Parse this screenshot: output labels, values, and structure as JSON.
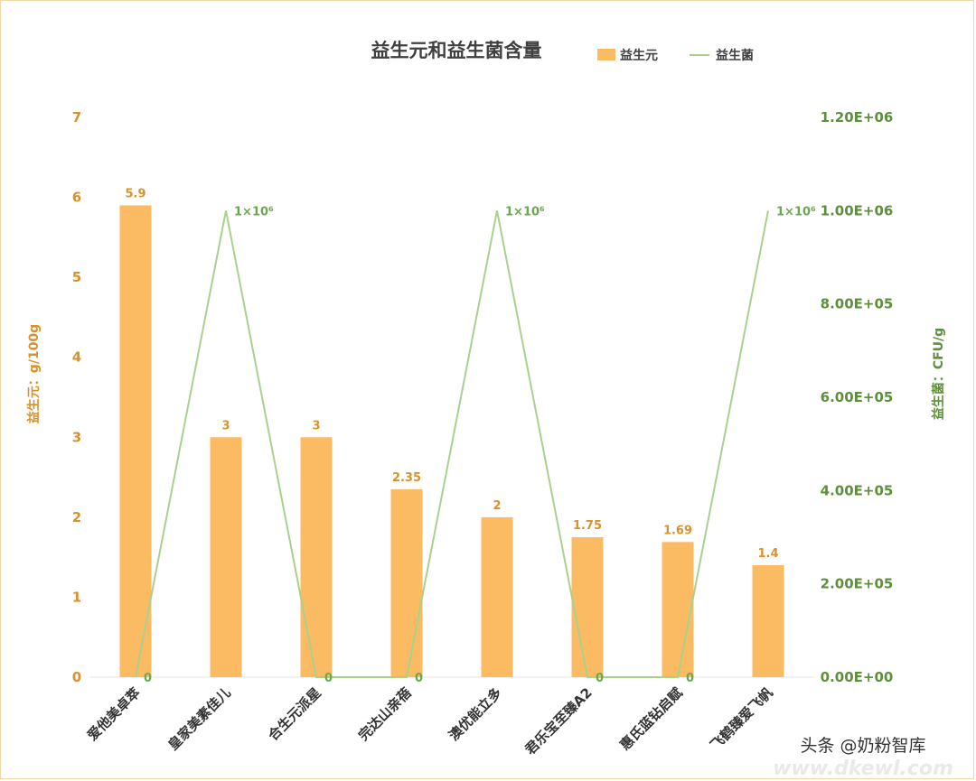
{
  "colors": {
    "bar": "#fbbb62",
    "line": "#a9d18e",
    "left_axis": "#d9922b",
    "right_axis": "#5e8f3c",
    "title": "#404040"
  },
  "chart_data": {
    "type": "bar",
    "title": "益生元和益生菌含量",
    "categories": [
      "爱他美卓萃",
      "皇家美素佳儿",
      "合生元派星",
      "完达山亲蓓",
      "澳优能立多",
      "君乐宝至臻A2",
      "惠氏蓝钻启赋",
      "飞鹤臻爱飞帆"
    ],
    "series": [
      {
        "name": "益生元",
        "type": "bar",
        "axis": "left",
        "values": [
          5.9,
          3,
          3,
          2.35,
          2,
          1.75,
          1.69,
          1.4
        ],
        "labels": [
          "5.9",
          "3",
          "3",
          "2.35",
          "2",
          "1.75",
          "1.69",
          "1.4"
        ]
      },
      {
        "name": "益生菌",
        "type": "line",
        "axis": "right",
        "values": [
          0,
          1000000,
          0,
          0,
          1000000,
          0,
          0,
          1000000
        ],
        "labels": [
          "0",
          "1×10⁶",
          "0",
          "0",
          "1×10⁶",
          "0",
          "0",
          "1×10⁶"
        ]
      }
    ],
    "y_left": {
      "label": "益生元：g/100g",
      "ylim": [
        0,
        7
      ],
      "ticks": [
        "0",
        "1",
        "2",
        "3",
        "4",
        "5",
        "6",
        "7"
      ]
    },
    "y_right": {
      "label": "益生菌：CFU/g",
      "ylim": [
        0,
        1200000
      ],
      "ticks": [
        "0.00E+00",
        "2.00E+05",
        "4.00E+05",
        "6.00E+05",
        "8.00E+05",
        "1.00E+06",
        "1.20E+06"
      ]
    },
    "legend": {
      "position": "top-right",
      "items": [
        "益生元",
        "益生菌"
      ]
    },
    "grid": false
  },
  "watermark": {
    "text": "头条 @奶粉智库",
    "url": "www.dkewl.com"
  }
}
